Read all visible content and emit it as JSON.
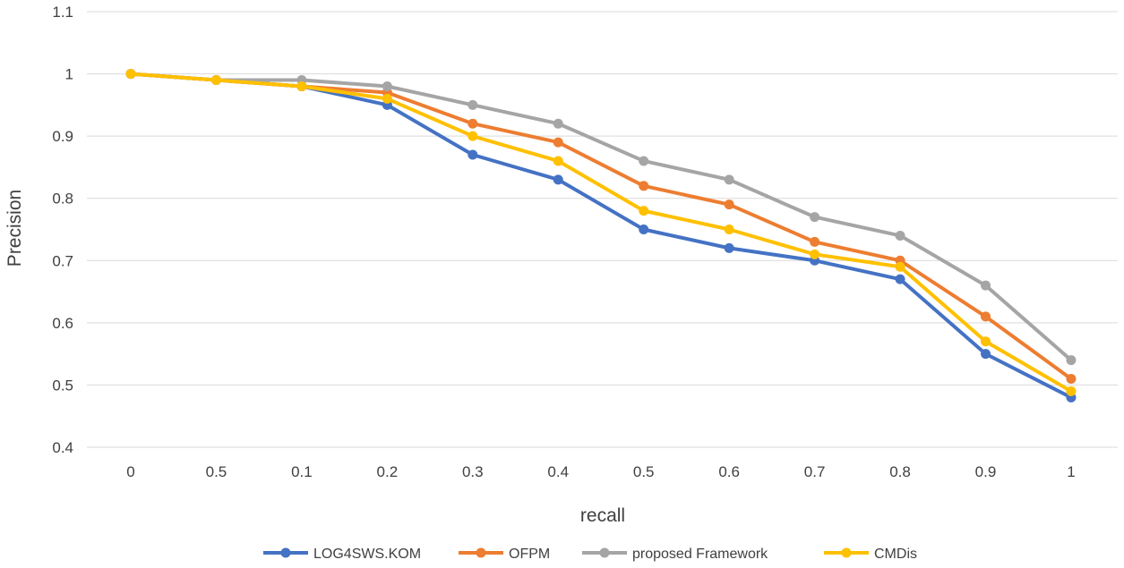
{
  "chart_data": {
    "type": "line",
    "title": "",
    "xlabel": "recall",
    "ylabel": "Precision",
    "categories": [
      "0",
      "0.5",
      "0.1",
      "0.2",
      "0.3",
      "0.4",
      "0.5",
      "0.6",
      "0.7",
      "0.8",
      "0.9",
      "1"
    ],
    "ylim": [
      0.4,
      1.1
    ],
    "yticks": [
      "0.4",
      "0.5",
      "0.6",
      "0.7",
      "0.8",
      "0.9",
      "1",
      "1.1"
    ],
    "grid": true,
    "legend_position": "bottom",
    "series": [
      {
        "name": "LOG4SWS.KOM",
        "color": "#4472c4",
        "values": [
          1.0,
          0.99,
          0.98,
          0.95,
          0.87,
          0.83,
          0.75,
          0.72,
          0.7,
          0.67,
          0.55,
          0.48
        ]
      },
      {
        "name": "OFPM",
        "color": "#ed7d31",
        "values": [
          1.0,
          0.99,
          0.98,
          0.97,
          0.92,
          0.89,
          0.82,
          0.79,
          0.73,
          0.7,
          0.61,
          0.51
        ]
      },
      {
        "name": "proposed Framework",
        "color": "#a5a5a5",
        "values": [
          1.0,
          0.99,
          0.99,
          0.98,
          0.95,
          0.92,
          0.86,
          0.83,
          0.77,
          0.74,
          0.66,
          0.54
        ]
      },
      {
        "name": "CMDis",
        "color": "#ffc000",
        "values": [
          1.0,
          0.99,
          0.98,
          0.96,
          0.9,
          0.86,
          0.78,
          0.75,
          0.71,
          0.69,
          0.57,
          0.49
        ]
      }
    ]
  }
}
